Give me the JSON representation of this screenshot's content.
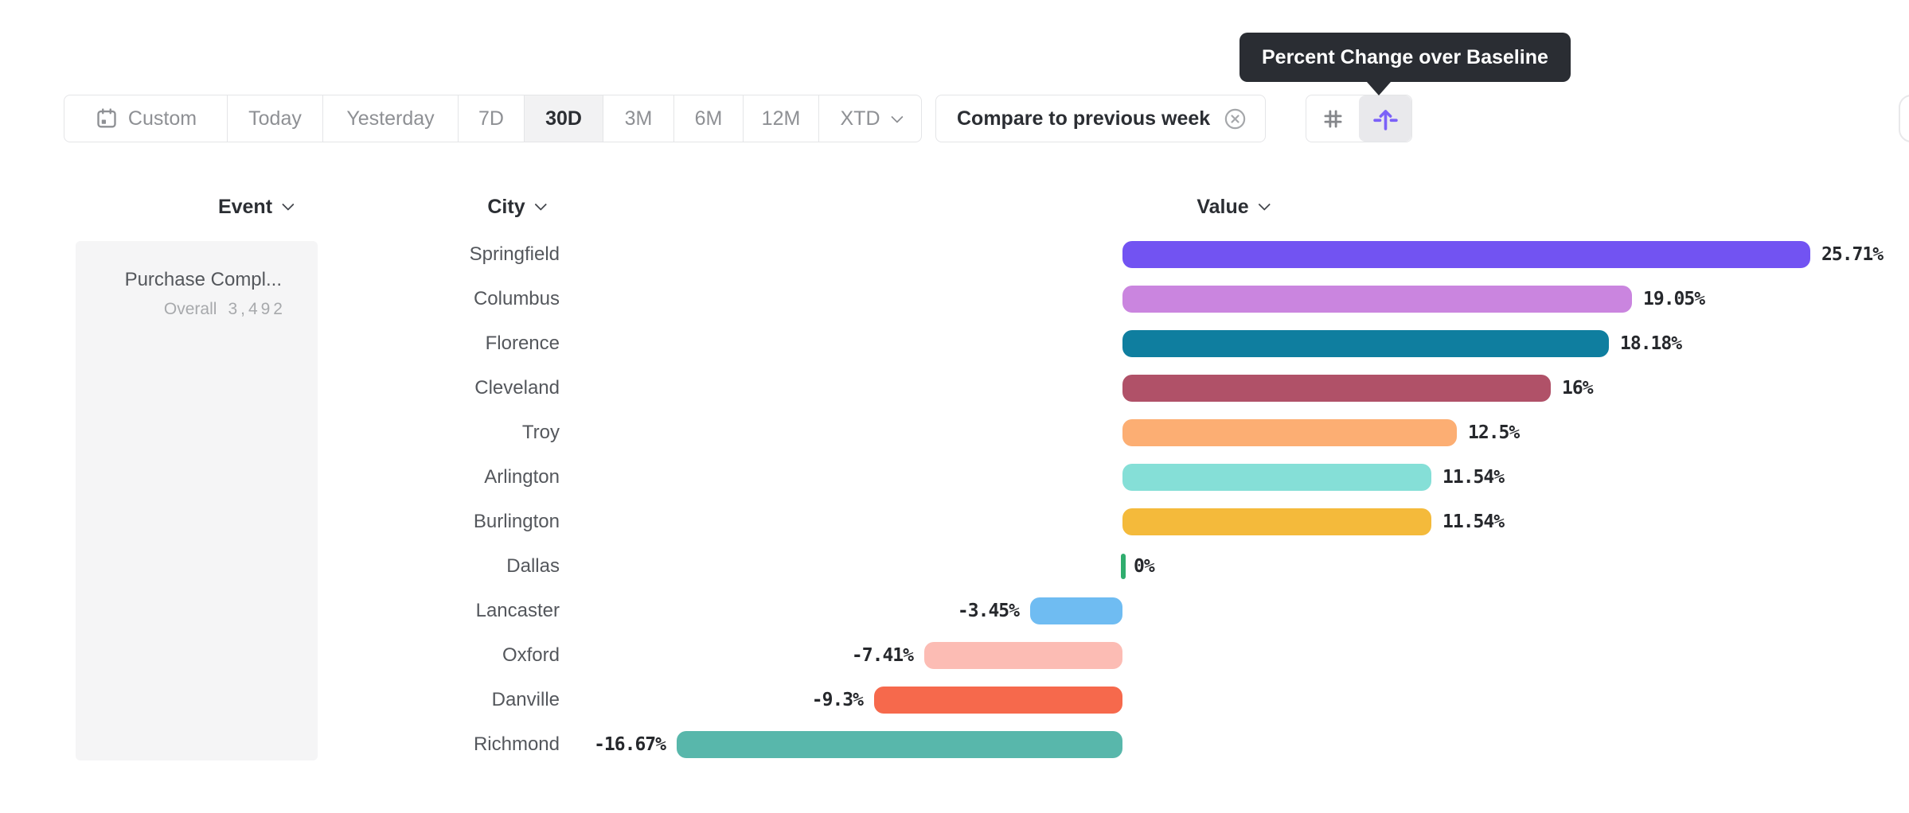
{
  "tooltip": {
    "text": "Percent Change over Baseline",
    "bg_color": "#2A2D33"
  },
  "toolbar": {
    "date_ranges": [
      {
        "label": "Custom",
        "icon": "calendar-icon",
        "active": false
      },
      {
        "label": "Today",
        "active": false
      },
      {
        "label": "Yesterday",
        "active": false
      },
      {
        "label": "7D",
        "active": false
      },
      {
        "label": "30D",
        "active": true
      },
      {
        "label": "3M",
        "active": false
      },
      {
        "label": "6M",
        "active": false
      },
      {
        "label": "12M",
        "active": false
      },
      {
        "label": "XTD",
        "chevron": true,
        "active": false
      }
    ],
    "compare_filter": {
      "label": "Compare to previous week",
      "close_icon": "close-circle-icon"
    },
    "view_toggle": {
      "options": [
        {
          "icon": "number-grid-icon",
          "active": false
        },
        {
          "icon": "baseline-arrow-icon",
          "active": true
        }
      ],
      "accent_color": "#7B61F8"
    }
  },
  "table": {
    "columns": [
      {
        "label": "Event"
      },
      {
        "label": "City"
      },
      {
        "label": "Value"
      }
    ],
    "event_cell": {
      "name": "Purchase Compl...",
      "overall_label": "Overall",
      "overall_value": "3,492"
    }
  },
  "chart_data": {
    "type": "bar",
    "orientation": "horizontal",
    "title": "",
    "xlabel": "",
    "ylabel": "",
    "unit": "%",
    "baseline": 0,
    "xlim": [
      -16.67,
      25.71
    ],
    "categories": [
      "Springfield",
      "Columbus",
      "Florence",
      "Cleveland",
      "Troy",
      "Arlington",
      "Burlington",
      "Dallas",
      "Lancaster",
      "Oxford",
      "Danville",
      "Richmond"
    ],
    "values": [
      25.71,
      19.05,
      18.18,
      16,
      12.5,
      11.54,
      11.54,
      0,
      -3.45,
      -7.41,
      -9.3,
      -16.67
    ],
    "labels": [
      "25.71%",
      "19.05%",
      "18.18%",
      "16%",
      "12.5%",
      "11.54%",
      "11.54%",
      "0%",
      "-3.45%",
      "-7.41%",
      "-9.3%",
      "-16.67%"
    ],
    "colors": [
      "#7253F2",
      "#CA85DF",
      "#0F7E9F",
      "#B05168",
      "#FCAE73",
      "#85DFD7",
      "#F4BA3B",
      "#2FAD6E",
      "#6FBCF2",
      "#FCBCB4",
      "#F6694C",
      "#58B7AB"
    ]
  }
}
